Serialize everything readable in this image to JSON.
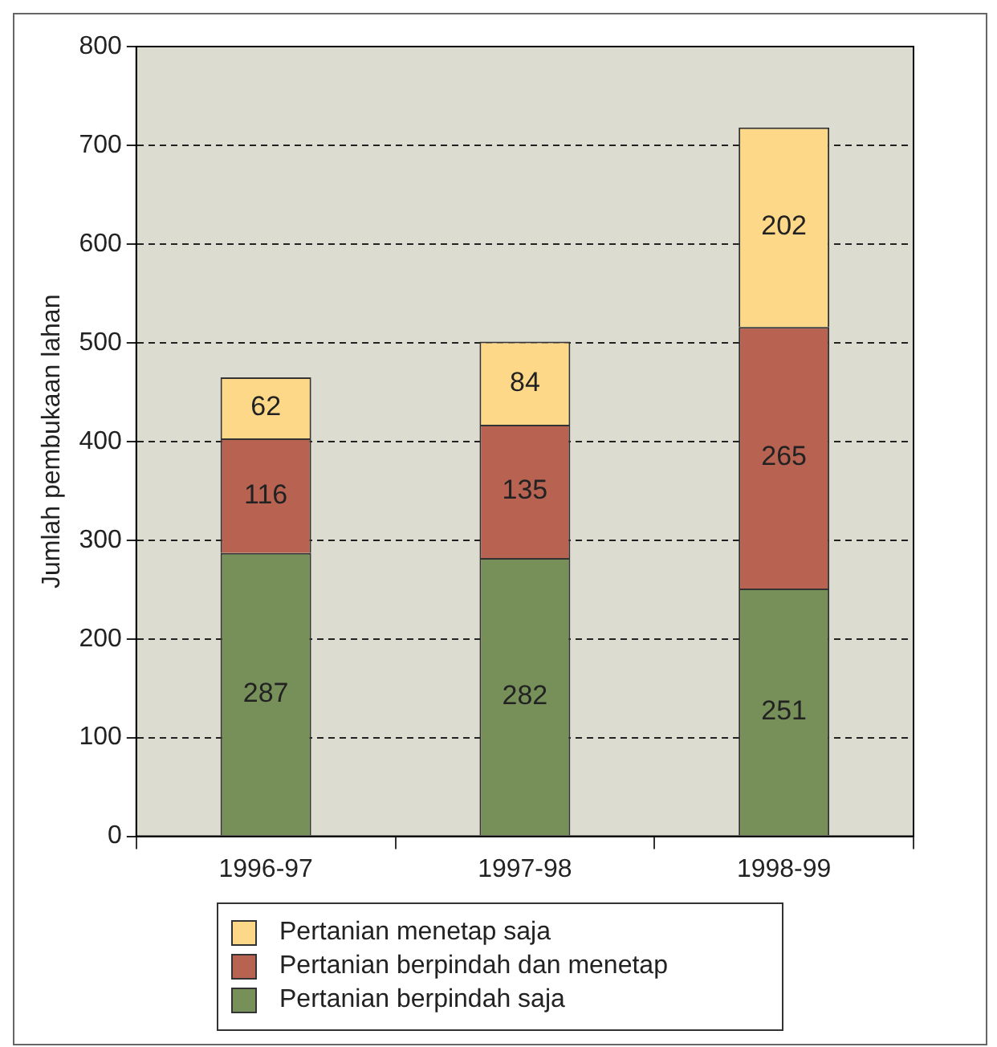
{
  "chart_data": {
    "type": "bar",
    "stacked": true,
    "ylabel": "Jumlah pembukaan lahan",
    "categories": [
      "1996-97",
      "1997-98",
      "1998-99"
    ],
    "series": [
      {
        "name": "Pertanian berpindah saja",
        "color": "#77905a",
        "values": [
          287,
          282,
          251
        ]
      },
      {
        "name": "Pertanian berpindah dan menetap",
        "color": "#b86352",
        "values": [
          116,
          135,
          265
        ]
      },
      {
        "name": "Pertanian menetap saja",
        "color": "#fdd889",
        "values": [
          62,
          84,
          202
        ]
      }
    ],
    "ylim": [
      0,
      800
    ],
    "yticks": [
      0,
      100,
      200,
      300,
      400,
      500,
      600,
      700,
      800
    ],
    "grid": "y",
    "line_style": "dashed",
    "legend": "bottom",
    "data_labels": true
  }
}
